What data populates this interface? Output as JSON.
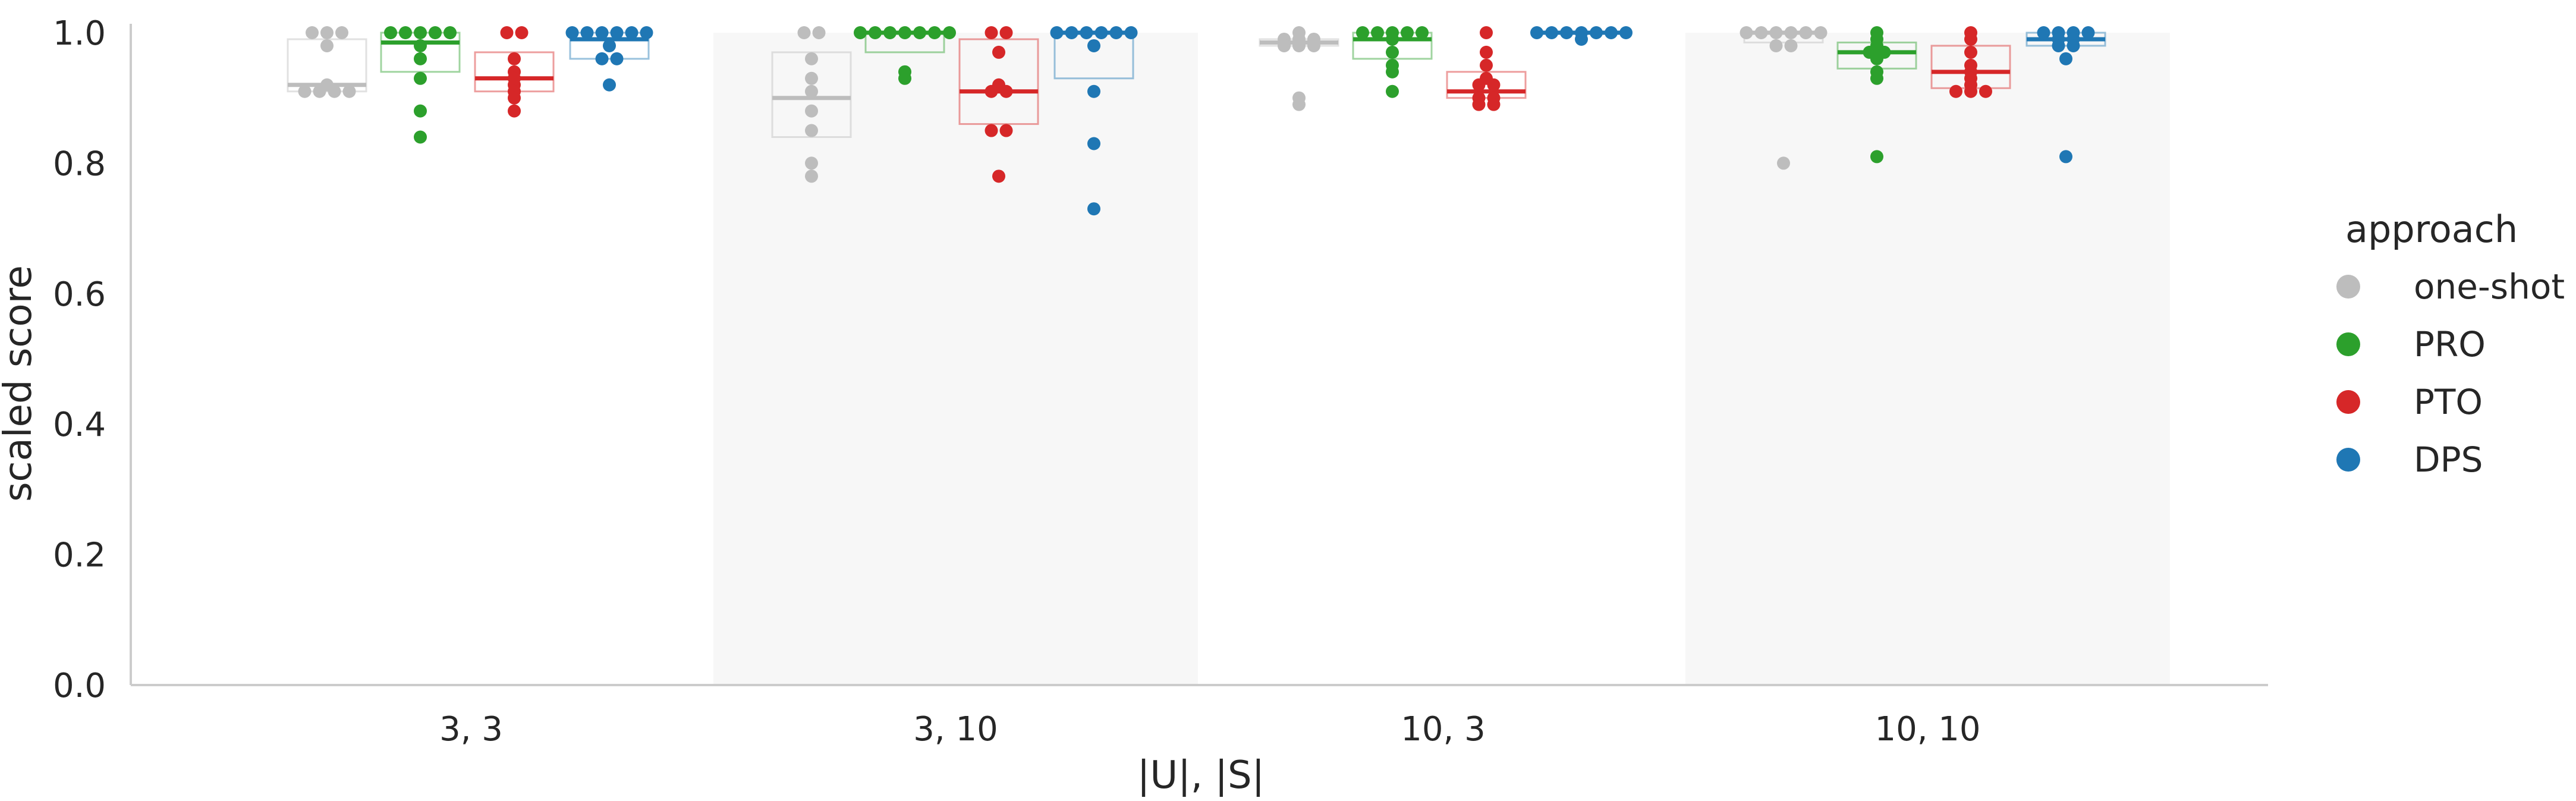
{
  "chart_data": {
    "type": "scatter",
    "xlabel": "|U|, |S|",
    "ylabel": "scaled score",
    "ylim": [
      0,
      1.0
    ],
    "yticks": [
      "0.0",
      "0.2",
      "0.4",
      "0.6",
      "0.8",
      "1.0"
    ],
    "categories": [
      "3, 3",
      "3, 10",
      "10, 3",
      "10, 10"
    ],
    "legend": {
      "title": "approach",
      "position": "right",
      "entries": [
        "one-shot",
        "PRO",
        "PTO",
        "DPS"
      ]
    },
    "series": [
      {
        "name": "one-shot",
        "color": "#bdbdbd",
        "groups": [
          {
            "points": [
              1.0,
              1.0,
              1.0,
              0.98,
              0.92,
              0.91,
              0.91,
              0.91,
              0.91
            ],
            "q1": 0.91,
            "median": 0.92,
            "q3": 0.99
          },
          {
            "points": [
              1.0,
              1.0,
              0.96,
              0.93,
              0.91,
              0.88,
              0.85,
              0.8,
              0.78
            ],
            "q1": 0.84,
            "median": 0.9,
            "q3": 0.97
          },
          {
            "points": [
              1.0,
              0.99,
              0.99,
              0.99,
              0.98,
              0.98,
              0.98,
              0.9,
              0.89
            ],
            "q1": 0.98,
            "median": 0.985,
            "q3": 0.99
          },
          {
            "points": [
              1.0,
              1.0,
              1.0,
              1.0,
              1.0,
              1.0,
              0.98,
              0.98,
              0.8
            ],
            "q1": 0.985,
            "median": 1.0,
            "q3": 1.0
          }
        ]
      },
      {
        "name": "PRO",
        "color": "#2ca02c",
        "groups": [
          {
            "points": [
              1.0,
              1.0,
              1.0,
              1.0,
              1.0,
              0.98,
              0.96,
              0.93,
              0.88,
              0.84
            ],
            "q1": 0.94,
            "median": 0.985,
            "q3": 1.0
          },
          {
            "points": [
              1.0,
              1.0,
              1.0,
              1.0,
              1.0,
              1.0,
              1.0,
              0.94,
              0.93
            ],
            "q1": 0.97,
            "median": 1.0,
            "q3": 1.0
          },
          {
            "points": [
              1.0,
              1.0,
              1.0,
              1.0,
              1.0,
              0.99,
              0.97,
              0.95,
              0.94,
              0.91
            ],
            "q1": 0.96,
            "median": 0.99,
            "q3": 1.0
          },
          {
            "points": [
              1.0,
              0.99,
              0.98,
              0.97,
              0.97,
              0.96,
              0.94,
              0.93,
              0.81
            ],
            "q1": 0.945,
            "median": 0.97,
            "q3": 0.985
          }
        ]
      },
      {
        "name": "PTO",
        "color": "#d62728",
        "groups": [
          {
            "points": [
              1.0,
              1.0,
              0.96,
              0.94,
              0.93,
              0.92,
              0.91,
              0.9,
              0.88
            ],
            "q1": 0.91,
            "median": 0.93,
            "q3": 0.97
          },
          {
            "points": [
              1.0,
              1.0,
              0.97,
              0.92,
              0.91,
              0.91,
              0.85,
              0.85,
              0.78
            ],
            "q1": 0.86,
            "median": 0.91,
            "q3": 0.99
          },
          {
            "points": [
              1.0,
              0.97,
              0.95,
              0.93,
              0.92,
              0.92,
              0.9,
              0.9,
              0.89,
              0.89
            ],
            "q1": 0.9,
            "median": 0.91,
            "q3": 0.94
          },
          {
            "points": [
              1.0,
              0.99,
              0.97,
              0.95,
              0.94,
              0.93,
              0.92,
              0.91,
              0.91,
              0.91
            ],
            "q1": 0.915,
            "median": 0.94,
            "q3": 0.98
          }
        ]
      },
      {
        "name": "DPS",
        "color": "#1f77b4",
        "groups": [
          {
            "points": [
              1.0,
              1.0,
              1.0,
              1.0,
              1.0,
              1.0,
              0.98,
              0.96,
              0.96,
              0.92
            ],
            "q1": 0.96,
            "median": 0.99,
            "q3": 1.0
          },
          {
            "points": [
              1.0,
              1.0,
              1.0,
              1.0,
              1.0,
              1.0,
              0.98,
              0.91,
              0.83,
              0.73
            ],
            "q1": 0.93,
            "median": 1.0,
            "q3": 1.0
          },
          {
            "points": [
              1.0,
              1.0,
              1.0,
              1.0,
              1.0,
              1.0,
              1.0,
              0.99
            ],
            "q1": 1.0,
            "median": 1.0,
            "q3": 1.0
          },
          {
            "points": [
              1.0,
              1.0,
              1.0,
              1.0,
              0.99,
              0.99,
              0.98,
              0.98,
              0.96,
              0.81
            ],
            "q1": 0.98,
            "median": 0.99,
            "q3": 1.0
          }
        ]
      }
    ],
    "shaded_categories": [
      "3, 10",
      "10, 10"
    ],
    "shade_color": "#f7f7f7",
    "grid": false
  }
}
